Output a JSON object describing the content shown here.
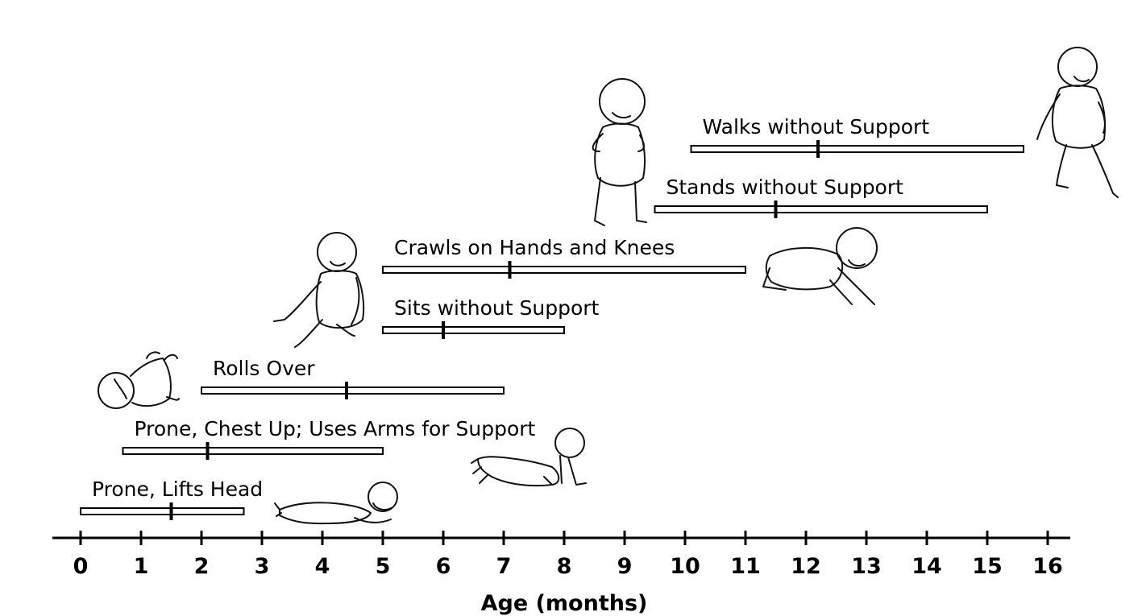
{
  "chart_data": {
    "type": "range-bar",
    "xlabel": "Age (months)",
    "xlim": [
      0,
      16
    ],
    "x_ticks": [
      0,
      1,
      2,
      3,
      4,
      5,
      6,
      7,
      8,
      9,
      10,
      11,
      12,
      13,
      14,
      15,
      16
    ],
    "tick_labels": [
      "0",
      "1",
      "2",
      "3",
      "4",
      "5",
      "6",
      "7",
      "8",
      "9",
      "10",
      "11",
      "12",
      "13",
      "14",
      "15",
      "16"
    ],
    "milestones": [
      {
        "label": "Prone, Lifts Head",
        "start": 0,
        "end": 2.7,
        "median": 1.5
      },
      {
        "label": "Prone, Chest Up; Uses Arms for Support",
        "start": 0.7,
        "end": 5,
        "median": 2.1
      },
      {
        "label": "Rolls Over",
        "start": 2,
        "end": 7,
        "median": 4.4
      },
      {
        "label": "Sits without Support",
        "start": 5,
        "end": 8,
        "median": 6
      },
      {
        "label": "Crawls on Hands and Knees",
        "start": 5,
        "end": 11,
        "median": 7.1
      },
      {
        "label": "Stands without Support",
        "start": 9.5,
        "end": 15,
        "median": 11.5
      },
      {
        "label": "Walks without Support",
        "start": 10.1,
        "end": 15.6,
        "median": 12.2
      }
    ],
    "illustrations": [
      "baby-lifting-head-icon",
      "baby-chest-up-icon",
      "baby-rolling-icon",
      "baby-sitting-icon",
      "baby-crawling-icon",
      "toddler-standing-icon",
      "toddler-walking-icon"
    ]
  }
}
